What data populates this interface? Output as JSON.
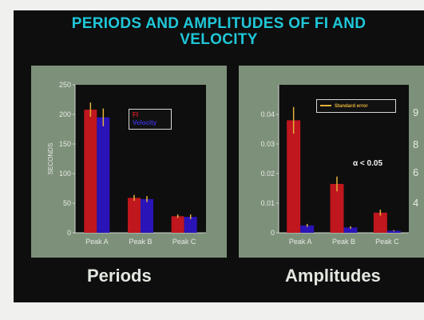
{
  "slide": {
    "title_line1": "PERIODS AND AMPLITUDES OF FI AND",
    "title_line2": "VELOCITY",
    "caption_left": "Periods",
    "caption_right": "Amplitudes"
  },
  "colors": {
    "fi": "#c0161e",
    "velocity": "#2a14b8",
    "error": "#e3b23c",
    "title": "#1fc7d8",
    "panel": "#7d917a",
    "plot": "#0e0e0e"
  },
  "chart_data": [
    {
      "type": "bar",
      "ylabel": "SECONDS",
      "categories": [
        "Peak A",
        "Peak B",
        "Peak C"
      ],
      "ylim": [
        0,
        250
      ],
      "yticks": [
        "0",
        "50",
        "100",
        "150",
        "200",
        "250"
      ],
      "legend_position": "top-right",
      "legend": [
        "FI",
        "Velocity"
      ],
      "series": [
        {
          "name": "FI",
          "values": [
            208,
            59,
            28
          ],
          "errors": [
            12,
            5,
            3
          ]
        },
        {
          "name": "Velocity",
          "values": [
            195,
            57,
            27
          ],
          "errors": [
            15,
            5,
            4
          ]
        }
      ]
    },
    {
      "type": "bar",
      "categories": [
        "Peak A",
        "Peak B",
        "Peak C"
      ],
      "ylim": [
        0,
        0.05
      ],
      "yticks": [
        "0",
        "0.01",
        "0.02",
        "0.03",
        "0.04"
      ],
      "right_ticks": [
        "9",
        "8",
        "6",
        "4"
      ],
      "legend_position": "top-right",
      "legend": [
        "Standard error"
      ],
      "annotation": "α < 0.05",
      "series": [
        {
          "name": "FI",
          "values": [
            0.038,
            0.0165,
            0.0068
          ],
          "errors": [
            0.0045,
            0.0025,
            0.001
          ]
        },
        {
          "name": "Velocity",
          "values": [
            0.0025,
            0.0018,
            0.0007
          ],
          "errors": [
            0.0005,
            0.0004,
            0.0002
          ]
        }
      ]
    }
  ]
}
